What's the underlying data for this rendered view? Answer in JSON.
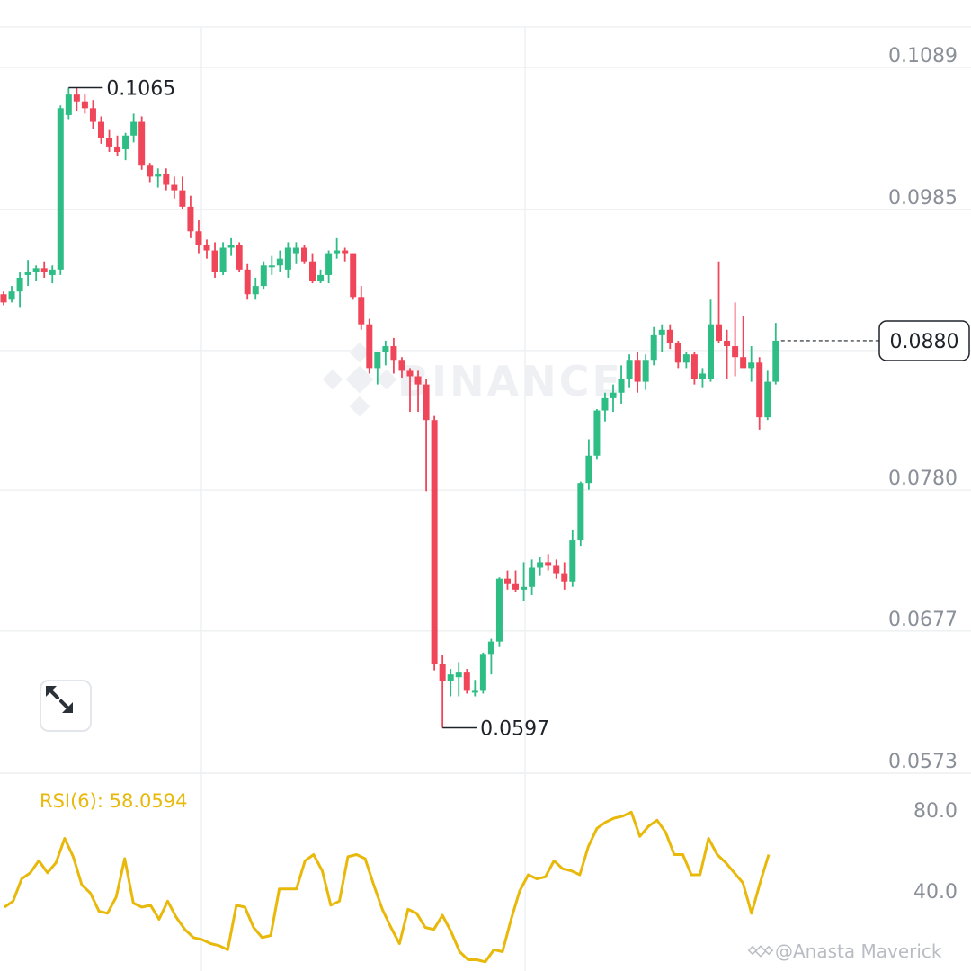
{
  "chart_data": [
    {
      "type": "candlestick",
      "price_axis_ticks": [
        "0.1089",
        "0.0985",
        "0.0882",
        "0.0780",
        "0.0677",
        "0.0573"
      ],
      "current_price": "0.0880",
      "high_marker": "0.1065",
      "low_marker": "0.0597",
      "ylim": [
        0.0573,
        0.1089
      ],
      "grid": true,
      "colors": {
        "up": "#2ebd85",
        "down": "#f0465a"
      },
      "candles": [
        [
          0.0914,
          0.0916,
          0.0906,
          0.0908
        ],
        [
          0.091,
          0.092,
          0.0908,
          0.0916
        ],
        [
          0.0916,
          0.093,
          0.0904,
          0.0926
        ],
        [
          0.0928,
          0.0939,
          0.092,
          0.093
        ],
        [
          0.093,
          0.0935,
          0.0924,
          0.0933
        ],
        [
          0.0933,
          0.0938,
          0.0926,
          0.093
        ],
        [
          0.0928,
          0.0935,
          0.0922,
          0.0932
        ],
        [
          0.0932,
          0.1052,
          0.0928,
          0.105
        ],
        [
          0.1045,
          0.1065,
          0.1042,
          0.106
        ],
        [
          0.106,
          0.1065,
          0.1048,
          0.1055
        ],
        [
          0.1055,
          0.106,
          0.1046,
          0.105
        ],
        [
          0.105,
          0.1056,
          0.1035,
          0.104
        ],
        [
          0.104,
          0.1044,
          0.1024,
          0.1028
        ],
        [
          0.1028,
          0.1034,
          0.1018,
          0.1022
        ],
        [
          0.1022,
          0.103,
          0.1015,
          0.1018
        ],
        [
          0.102,
          0.1032,
          0.1012,
          0.103
        ],
        [
          0.103,
          0.1046,
          0.1025,
          0.104
        ],
        [
          0.104,
          0.1044,
          0.1005,
          0.1008
        ],
        [
          0.1008,
          0.101,
          0.0996,
          0.1
        ],
        [
          0.1,
          0.1006,
          0.0992,
          0.1002
        ],
        [
          0.1002,
          0.1006,
          0.099,
          0.0994
        ],
        [
          0.0994,
          0.1,
          0.0984,
          0.099
        ],
        [
          0.099,
          0.1,
          0.0976,
          0.0978
        ],
        [
          0.0978,
          0.0986,
          0.0955,
          0.096
        ],
        [
          0.096,
          0.0968,
          0.0944,
          0.095
        ],
        [
          0.095,
          0.0954,
          0.094,
          0.0946
        ],
        [
          0.0946,
          0.0952,
          0.0926,
          0.093
        ],
        [
          0.093,
          0.0952,
          0.0928,
          0.0948
        ],
        [
          0.0948,
          0.0955,
          0.0942,
          0.095
        ],
        [
          0.095,
          0.0952,
          0.093,
          0.0932
        ],
        [
          0.0932,
          0.0936,
          0.091,
          0.0914
        ],
        [
          0.0914,
          0.0926,
          0.091,
          0.092
        ],
        [
          0.092,
          0.0938,
          0.0918,
          0.0935
        ],
        [
          0.0935,
          0.0942,
          0.0928,
          0.0935
        ],
        [
          0.0935,
          0.0946,
          0.093,
          0.094
        ],
        [
          0.0932,
          0.0952,
          0.0926,
          0.0948
        ],
        [
          0.0944,
          0.0952,
          0.0936,
          0.0948
        ],
        [
          0.0948,
          0.095,
          0.0936,
          0.0938
        ],
        [
          0.0938,
          0.0944,
          0.0922,
          0.0924
        ],
        [
          0.0924,
          0.0932,
          0.0922,
          0.0928
        ],
        [
          0.0928,
          0.0946,
          0.0922,
          0.0944
        ],
        [
          0.0944,
          0.0955,
          0.094,
          0.0946
        ],
        [
          0.0946,
          0.0948,
          0.0938,
          0.0944
        ],
        [
          0.0944,
          0.0944,
          0.091,
          0.0912
        ],
        [
          0.0912,
          0.092,
          0.0888,
          0.0892
        ],
        [
          0.0892,
          0.0896,
          0.0856,
          0.086
        ],
        [
          0.086,
          0.087,
          0.0848,
          0.0872
        ],
        [
          0.0872,
          0.088,
          0.0862,
          0.0876
        ],
        [
          0.0876,
          0.0882,
          0.0856,
          0.0866
        ],
        [
          0.0866,
          0.0868,
          0.0853,
          0.0858
        ],
        [
          0.0858,
          0.086,
          0.0828,
          0.0854
        ],
        [
          0.0854,
          0.0858,
          0.0828,
          0.0848
        ],
        [
          0.0848,
          0.0852,
          0.077,
          0.0822
        ],
        [
          0.0822,
          0.0825,
          0.0639,
          0.0644
        ],
        [
          0.0644,
          0.065,
          0.0597,
          0.0631
        ],
        [
          0.0631,
          0.064,
          0.062,
          0.0636
        ],
        [
          0.0634,
          0.0645,
          0.062,
          0.0638
        ],
        [
          0.0638,
          0.064,
          0.0622,
          0.0624
        ],
        [
          0.0624,
          0.0632,
          0.062,
          0.0624
        ],
        [
          0.0624,
          0.0652,
          0.0622,
          0.0651
        ],
        [
          0.0651,
          0.0662,
          0.0636,
          0.066
        ],
        [
          0.066,
          0.0707,
          0.0656,
          0.0706
        ],
        [
          0.0706,
          0.0712,
          0.0698,
          0.0702
        ],
        [
          0.0702,
          0.0712,
          0.0696,
          0.0698
        ],
        [
          0.0698,
          0.0718,
          0.069,
          0.07
        ],
        [
          0.07,
          0.072,
          0.0694,
          0.0714
        ],
        [
          0.0714,
          0.0722,
          0.0708,
          0.0718
        ],
        [
          0.0718,
          0.0724,
          0.0712,
          0.0716
        ],
        [
          0.0716,
          0.072,
          0.0706,
          0.071
        ],
        [
          0.071,
          0.0718,
          0.0698,
          0.0704
        ],
        [
          0.0704,
          0.0742,
          0.07,
          0.0734
        ],
        [
          0.0734,
          0.0777,
          0.073,
          0.0776
        ],
        [
          0.0776,
          0.0808,
          0.0771,
          0.0796
        ],
        [
          0.0796,
          0.083,
          0.0793,
          0.0829
        ],
        [
          0.0829,
          0.0842,
          0.0821,
          0.0838
        ],
        [
          0.0838,
          0.0848,
          0.0828,
          0.0842
        ],
        [
          0.0842,
          0.0862,
          0.0834,
          0.0852
        ],
        [
          0.0852,
          0.087,
          0.0846,
          0.0866
        ],
        [
          0.0866,
          0.0872,
          0.0842,
          0.085
        ],
        [
          0.085,
          0.087,
          0.0844,
          0.0866
        ],
        [
          0.0866,
          0.089,
          0.0862,
          0.0884
        ],
        [
          0.0884,
          0.0892,
          0.0872,
          0.0888
        ],
        [
          0.0888,
          0.0892,
          0.0874,
          0.0878
        ],
        [
          0.0878,
          0.088,
          0.086,
          0.0864
        ],
        [
          0.0864,
          0.0872,
          0.086,
          0.087
        ],
        [
          0.087,
          0.0872,
          0.0848,
          0.0852
        ],
        [
          0.0852,
          0.086,
          0.0846,
          0.0856
        ],
        [
          0.0852,
          0.091,
          0.085,
          0.0892
        ],
        [
          0.0892,
          0.0938,
          0.0878,
          0.088
        ],
        [
          0.088,
          0.0888,
          0.0852,
          0.0876
        ],
        [
          0.0876,
          0.0908,
          0.0854,
          0.0868
        ],
        [
          0.0868,
          0.0898,
          0.0862,
          0.086
        ],
        [
          0.086,
          0.0876,
          0.085,
          0.0864
        ],
        [
          0.0864,
          0.0868,
          0.0815,
          0.0824
        ],
        [
          0.0824,
          0.0858,
          0.0822,
          0.085
        ],
        [
          0.085,
          0.0893,
          0.0848,
          0.088
        ]
      ]
    },
    {
      "type": "line",
      "title": "RSI(6): 58.0594",
      "y_ticks": [
        "80.0",
        "40.0"
      ],
      "ylim": [
        10,
        100
      ],
      "color": "#e8b90b",
      "values": [
        32,
        35,
        46,
        49,
        55,
        49,
        54,
        66,
        57,
        43,
        39,
        30,
        29,
        37,
        56,
        34,
        32,
        33,
        26,
        35,
        27,
        21,
        17,
        16,
        14,
        13,
        11,
        33,
        32,
        22,
        17,
        18,
        41,
        41,
        41,
        55,
        58,
        50,
        33,
        35,
        57,
        58,
        56,
        43,
        31,
        22,
        14,
        31,
        29,
        22,
        21,
        28,
        20,
        10,
        6,
        6,
        5,
        11,
        10,
        26,
        40,
        48,
        46,
        47,
        55,
        51,
        50,
        48,
        62,
        71,
        74,
        76,
        77,
        79,
        67,
        72,
        75,
        69,
        58,
        58,
        48,
        48,
        66,
        58,
        54,
        49,
        44,
        29,
        44,
        58
      ]
    }
  ],
  "watermark": "BINANCE",
  "credit": "@Anasta Maverick",
  "icons": {
    "expand": "expand-arrows-icon",
    "logo": "binance-logo-icon",
    "credit_logo": "binance-small-logo-icon"
  }
}
